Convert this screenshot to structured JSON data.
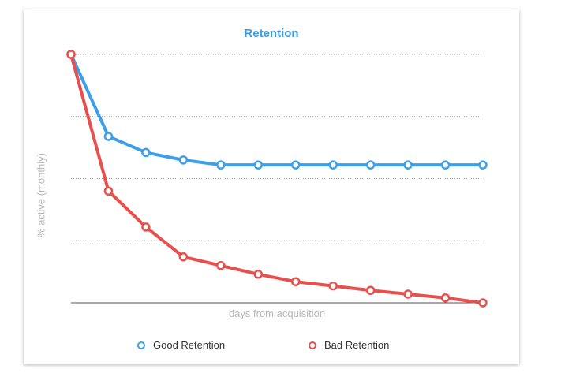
{
  "chart_data": {
    "type": "line",
    "title": "Retention",
    "xlabel": "days from acquisition",
    "ylabel": "% active (monthly)",
    "x": [
      0,
      1,
      2,
      3,
      4,
      5,
      6,
      7,
      8,
      9,
      10,
      11
    ],
    "ylim": [
      0,
      100
    ],
    "grid": "horizontal-dotted",
    "legend_position": "bottom",
    "series": [
      {
        "name": "Good Retention",
        "color": "#3d9ee9",
        "values": [
          100,
          67,
          60.5,
          57.5,
          55.5,
          55.5,
          55.5,
          55.5,
          55.5,
          55.5,
          55.5,
          55.5
        ]
      },
      {
        "name": "Bad Retention",
        "color": "#e8504e",
        "values": [
          100,
          45,
          30.5,
          18.5,
          15,
          11.5,
          8.5,
          6.8,
          5,
          3.5,
          2,
          0
        ]
      }
    ]
  }
}
